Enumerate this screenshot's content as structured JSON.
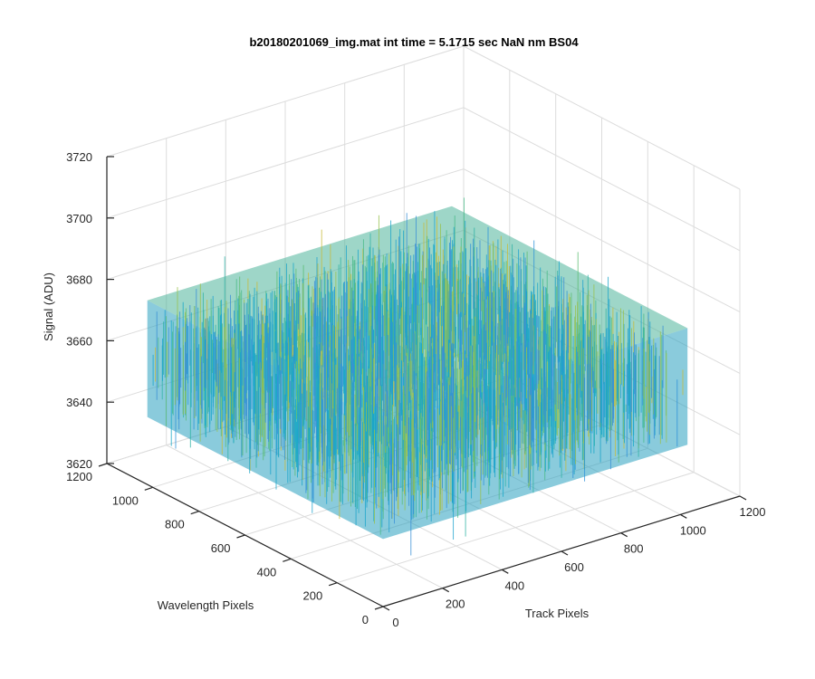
{
  "chart_data": {
    "type": "surface",
    "title": "b20180201069_img.mat int time = 5.1715 sec  NaN nm BS04",
    "xlabel": "Track Pixels",
    "ylabel": "Wavelength Pixels",
    "zlabel": "Signal (ADU)",
    "xlim": [
      0,
      1200
    ],
    "ylim": [
      0,
      1200
    ],
    "zlim": [
      3620,
      3720
    ],
    "xticks": [
      "0",
      "200",
      "400",
      "600",
      "800",
      "1000",
      "1200"
    ],
    "yticks": [
      "0",
      "200",
      "400",
      "600",
      "800",
      "1000",
      "1200"
    ],
    "zticks": [
      "3620",
      "3640",
      "3660",
      "3680",
      "3700",
      "3720"
    ],
    "grid": true,
    "colormap": "parula",
    "surface": {
      "x_range": [
        0,
        1024
      ],
      "y_range": [
        0,
        1024
      ],
      "mean_signal": 3660,
      "noise_min": 3640,
      "noise_max": 3700,
      "note": "dense noise surface of detector signal over track x wavelength pixels"
    }
  }
}
